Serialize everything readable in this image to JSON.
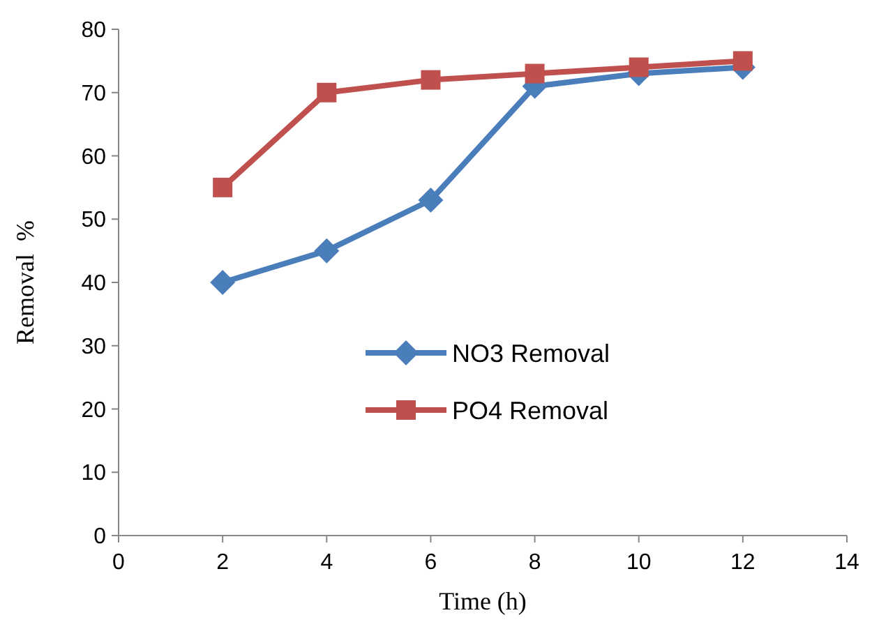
{
  "chart_data": {
    "type": "line",
    "xlabel": "Time (h)",
    "ylabel": "Removal  %",
    "x": [
      2,
      4,
      6,
      8,
      10,
      12
    ],
    "xlim": [
      0,
      14
    ],
    "xticks": [
      0,
      2,
      4,
      6,
      8,
      10,
      12,
      14
    ],
    "ylim": [
      0,
      80
    ],
    "yticks": [
      0,
      10,
      20,
      30,
      40,
      50,
      60,
      70,
      80
    ],
    "grid": false,
    "legend": "center",
    "series": [
      {
        "name": "NO3 Removal",
        "color": "#4a7ebb",
        "marker": "diamond",
        "values": [
          40,
          45,
          53,
          71,
          73,
          74
        ]
      },
      {
        "name": "PO4 Removal",
        "color": "#c0504d",
        "marker": "square",
        "values": [
          55,
          70,
          72,
          73,
          74,
          75
        ]
      }
    ]
  }
}
